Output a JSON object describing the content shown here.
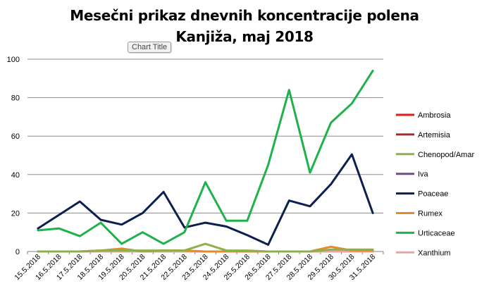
{
  "chart_data": {
    "type": "line",
    "title": "Mesečni prikaz dnevnih koncentracije polena",
    "subtitle": "Kanjiža, maj 2018",
    "tooltip": "Chart Title",
    "xlabel": "",
    "ylabel": "",
    "ylim": [
      0,
      100
    ],
    "yticks": [
      0,
      20,
      40,
      60,
      80,
      100
    ],
    "grid": true,
    "legend_position": "right",
    "categories": [
      "15.5.2018",
      "16.5.2018",
      "17.5.2018",
      "18.5.2018",
      "19.5.2018",
      "20.5.2018",
      "21.5.2018",
      "22.5.2018",
      "23.5.2018",
      "24.5.2018",
      "25.5.2018",
      "26.5.2018",
      "27.5.2018",
      "28.5.2018",
      "29.5.2018",
      "30.5.2018",
      "31.5.2018"
    ],
    "series": [
      {
        "name": "Ambrosia",
        "color": "#e31a1c",
        "values": [
          0,
          0,
          0,
          0,
          0,
          0,
          0,
          0,
          0,
          0,
          0,
          0,
          0,
          0,
          0,
          0,
          0
        ]
      },
      {
        "name": "Artemisia",
        "color": "#a52a2a",
        "values": [
          0,
          0,
          0,
          0,
          0,
          0,
          0,
          0,
          0,
          0,
          0,
          0,
          0,
          0,
          0,
          0,
          0
        ]
      },
      {
        "name": "Chenopod/Amar",
        "color": "#8db04a",
        "values": [
          0,
          0,
          0,
          0.5,
          0.5,
          0.5,
          0.5,
          0.5,
          4,
          0.5,
          0.5,
          0,
          0,
          0,
          1,
          1,
          1
        ]
      },
      {
        "name": "Iva",
        "color": "#6a4c93",
        "values": [
          0,
          0,
          0,
          0,
          0,
          0,
          0,
          0,
          0,
          0,
          0,
          0,
          0,
          0,
          0,
          0,
          0
        ]
      },
      {
        "name": "Poaceae",
        "color": "#0d1f4f",
        "values": [
          12,
          19,
          26,
          16.5,
          14,
          20,
          31,
          12.5,
          15,
          13,
          8.5,
          3.5,
          26.5,
          23.5,
          35,
          50.5,
          20
        ]
      },
      {
        "name": "Rumex",
        "color": "#e8892b",
        "values": [
          0,
          0,
          0,
          0.5,
          1.5,
          0,
          0.5,
          0.5,
          0,
          0,
          0,
          0,
          0,
          0,
          2.5,
          0.5,
          0.5
        ]
      },
      {
        "name": "Urticaceae",
        "color": "#20b24a",
        "values": [
          11,
          12,
          8,
          15,
          4,
          10,
          4,
          10,
          36,
          16,
          16,
          45,
          84,
          41,
          67,
          77,
          94
        ]
      },
      {
        "name": "Xanthium",
        "color": "#e8a6a6",
        "values": [
          0,
          0,
          0,
          0,
          0,
          0,
          0,
          0,
          0,
          0,
          0,
          0,
          0,
          0,
          0,
          0,
          0
        ]
      }
    ]
  }
}
